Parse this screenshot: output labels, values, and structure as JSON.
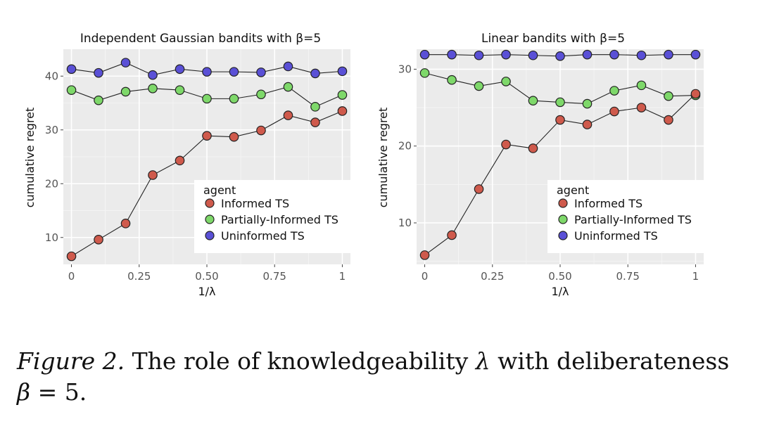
{
  "chart_data": [
    {
      "type": "scatter",
      "title": "Independent Gaussian bandits with β=5",
      "xlabel": "1/λ",
      "ylabel": "cumulative regret",
      "xlim": [
        -0.03,
        1.03
      ],
      "ylim": [
        5,
        45
      ],
      "xticks": [
        0,
        0.25,
        0.5,
        0.75,
        1
      ],
      "xtick_labels": [
        "0",
        "0.25",
        "0.50",
        "0.75",
        "1"
      ],
      "yticks": [
        10,
        20,
        30,
        40
      ],
      "ytick_labels": [
        "10",
        "20",
        "30",
        "40"
      ],
      "x": [
        0,
        0.1,
        0.2,
        0.3,
        0.4,
        0.5,
        0.6,
        0.7,
        0.8,
        0.9,
        1.0
      ],
      "legend_title": "agent",
      "legend_position": "bottom-right",
      "series": [
        {
          "name": "Informed TS",
          "color": "#cf5a4c",
          "values": [
            6.5,
            9.6,
            12.6,
            21.6,
            24.3,
            28.9,
            28.7,
            29.9,
            32.7,
            31.4,
            33.5
          ]
        },
        {
          "name": "Partially-Informed TS",
          "color": "#7ed86a",
          "values": [
            37.4,
            35.5,
            37.1,
            37.7,
            37.4,
            35.8,
            35.8,
            36.6,
            38.0,
            34.3,
            36.5
          ]
        },
        {
          "name": "Uninformed TS",
          "color": "#5a50d6",
          "values": [
            41.3,
            40.6,
            42.5,
            40.2,
            41.3,
            40.8,
            40.8,
            40.7,
            41.8,
            40.5,
            40.9
          ]
        }
      ]
    },
    {
      "type": "scatter",
      "title": "Linear bandits with β=5",
      "xlabel": "1/λ",
      "ylabel": "cumulative regret",
      "xlim": [
        -0.03,
        1.03
      ],
      "ylim": [
        4.6,
        32.6
      ],
      "xticks": [
        0,
        0.25,
        0.5,
        0.75,
        1
      ],
      "xtick_labels": [
        "0",
        "0.25",
        "0.50",
        "0.75",
        "1"
      ],
      "yticks": [
        10,
        20,
        30
      ],
      "ytick_labels": [
        "10",
        "20",
        "30"
      ],
      "x": [
        0,
        0.1,
        0.2,
        0.3,
        0.4,
        0.5,
        0.6,
        0.7,
        0.8,
        0.9,
        1.0
      ],
      "legend_title": "agent",
      "legend_position": "bottom-right",
      "series": [
        {
          "name": "Informed TS",
          "color": "#cf5a4c",
          "values": [
            5.8,
            8.4,
            14.4,
            20.2,
            19.7,
            23.4,
            22.8,
            24.5,
            25.0,
            23.4,
            26.8
          ]
        },
        {
          "name": "Partially-Informed TS",
          "color": "#7ed86a",
          "values": [
            29.5,
            28.6,
            27.8,
            28.4,
            25.9,
            25.7,
            25.5,
            27.2,
            27.9,
            26.5,
            26.6
          ]
        },
        {
          "name": "Uninformed TS",
          "color": "#5a50d6",
          "values": [
            31.9,
            31.9,
            31.8,
            31.9,
            31.8,
            31.7,
            31.9,
            31.9,
            31.8,
            31.9,
            31.9
          ]
        }
      ]
    }
  ],
  "caption": {
    "label": "Figure 2.",
    "text_before": " The role of knowledgeability ",
    "lambda_symbol": "λ",
    "text_middle": " with deliberateness ",
    "beta_symbol": "β",
    "text_after": " = 5."
  }
}
